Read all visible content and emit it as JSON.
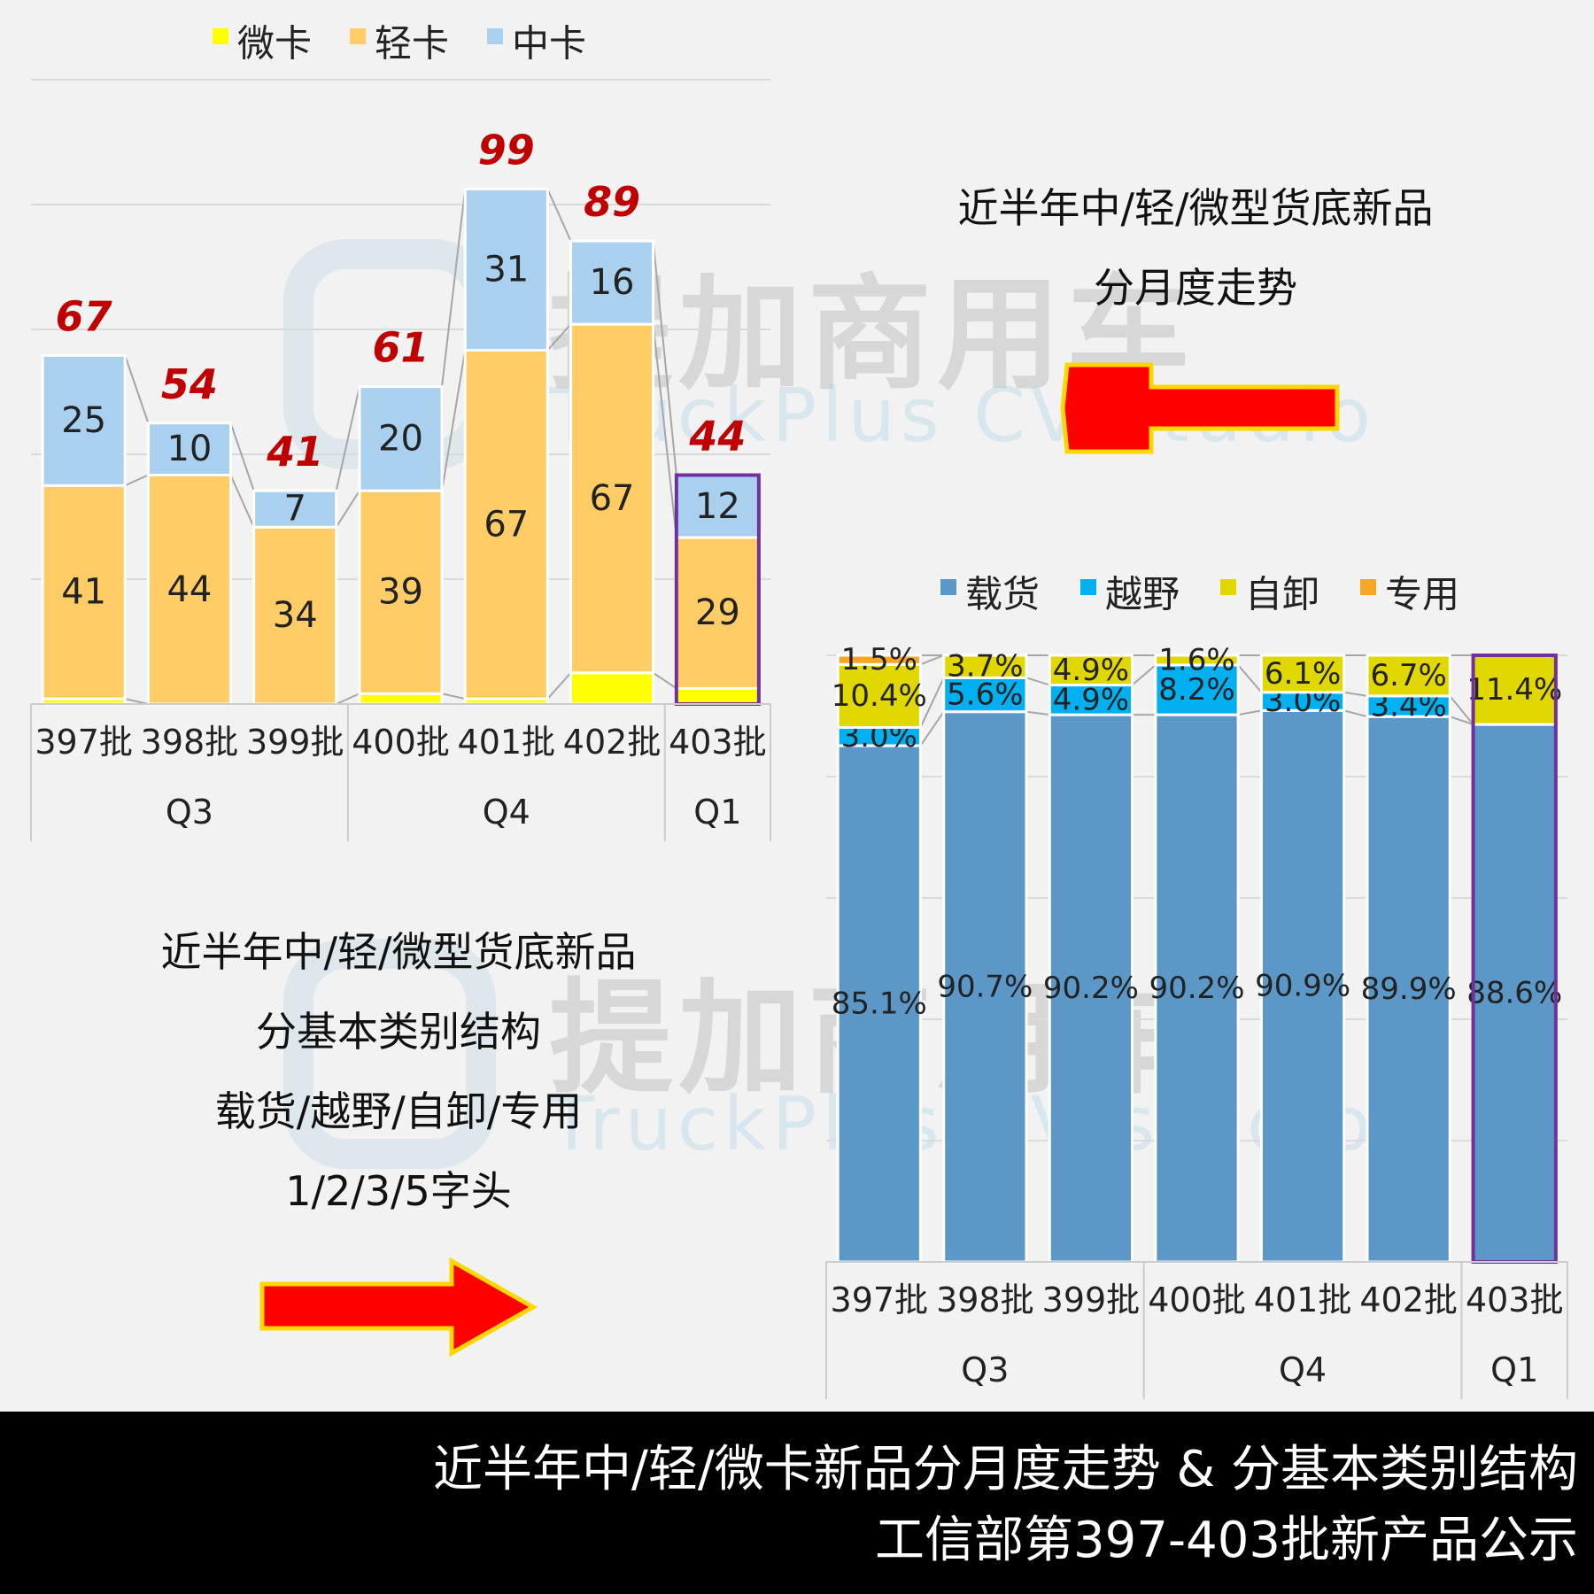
{
  "watermark": {
    "cn": "提加商用车",
    "en": "TruckPlus CV studio"
  },
  "notes": {
    "top": [
      "近半年中/轻/微型货底新品",
      "分月度走势"
    ],
    "bottom": [
      "近半年中/轻/微型货底新品",
      "分基本类别结构",
      "载货/越野/自卸/专用",
      "1/2/3/5字头"
    ]
  },
  "banner": {
    "line1": "近半年中/轻/微卡新品分月度走势 & 分基本类别结构",
    "line2": "工信部第397-403批新产品公示"
  },
  "colors": {
    "micro": "#ffff00",
    "light": "#ffcc66",
    "medium": "#a9d0ee",
    "cargo": "#5b98c8",
    "offroad": "#00b0f0",
    "dump": "#e0d800",
    "special": "#f5a623",
    "total_label": "#c00000",
    "highlight": "#7030a0",
    "arrow": "#ff0000",
    "arrow_border": "#ffd700"
  },
  "chart_data": [
    {
      "type": "bar",
      "stacked": true,
      "categories": [
        "397批",
        "398批",
        "399批",
        "400批",
        "401批",
        "402批",
        "403批"
      ],
      "groups": [
        {
          "label": "Q3",
          "categories": [
            "397批",
            "398批",
            "399批"
          ]
        },
        {
          "label": "Q4",
          "categories": [
            "400批",
            "401批",
            "402批"
          ]
        },
        {
          "label": "Q1",
          "categories": [
            "403批"
          ]
        }
      ],
      "series": [
        {
          "name": "微卡",
          "values": [
            1,
            0,
            0,
            2,
            1,
            6,
            3
          ],
          "labels": [
            "1",
            "",
            "",
            "2",
            "1",
            "6",
            "3"
          ]
        },
        {
          "name": "轻卡",
          "values": [
            41,
            44,
            34,
            39,
            67,
            67,
            29
          ],
          "labels": [
            "41",
            "44",
            "34",
            "39",
            "67",
            "67",
            "29"
          ]
        },
        {
          "name": "中卡",
          "values": [
            25,
            10,
            7,
            20,
            31,
            16,
            12
          ],
          "labels": [
            "25",
            "10",
            "7",
            "20",
            "31",
            "16",
            "12"
          ]
        }
      ],
      "totals": [
        "67",
        "54",
        "41",
        "61",
        "99",
        "89",
        "44"
      ],
      "ylim": [
        0,
        120
      ],
      "legend_position": "top",
      "grid": true,
      "highlight_category": "403批"
    },
    {
      "type": "bar",
      "stacked": true,
      "normalized": true,
      "categories": [
        "397批",
        "398批",
        "399批",
        "400批",
        "401批",
        "402批",
        "403批"
      ],
      "groups": [
        {
          "label": "Q3",
          "categories": [
            "397批",
            "398批",
            "399批"
          ]
        },
        {
          "label": "Q4",
          "categories": [
            "400批",
            "401批",
            "402批"
          ]
        },
        {
          "label": "Q1",
          "categories": [
            "403批"
          ]
        }
      ],
      "series": [
        {
          "name": "载货",
          "values": [
            85.1,
            90.7,
            90.2,
            90.2,
            90.9,
            89.9,
            88.6
          ],
          "labels": [
            "85.1%",
            "90.7%",
            "90.2%",
            "90.2%",
            "90.9%",
            "89.9%",
            "88.6%"
          ]
        },
        {
          "name": "越野",
          "values": [
            3.0,
            5.6,
            4.9,
            8.2,
            3.0,
            3.4,
            0
          ],
          "labels": [
            "3.0%",
            "5.6%",
            "4.9%",
            "8.2%",
            "3.0%",
            "3.4%",
            ""
          ]
        },
        {
          "name": "自卸",
          "values": [
            10.4,
            3.7,
            4.9,
            1.6,
            6.1,
            6.7,
            11.4
          ],
          "labels": [
            "10.4%",
            "3.7%",
            "4.9%",
            "1.6%",
            "6.1%",
            "6.7%",
            "11.4%"
          ]
        },
        {
          "name": "专用",
          "values": [
            1.5,
            0,
            0,
            0,
            0,
            0,
            0
          ],
          "labels": [
            "1.5%",
            "",
            "",
            "",
            "",
            "",
            ""
          ]
        }
      ],
      "ylim": [
        0,
        100
      ],
      "legend_position": "top",
      "grid": true,
      "highlight_category": "403批"
    }
  ]
}
